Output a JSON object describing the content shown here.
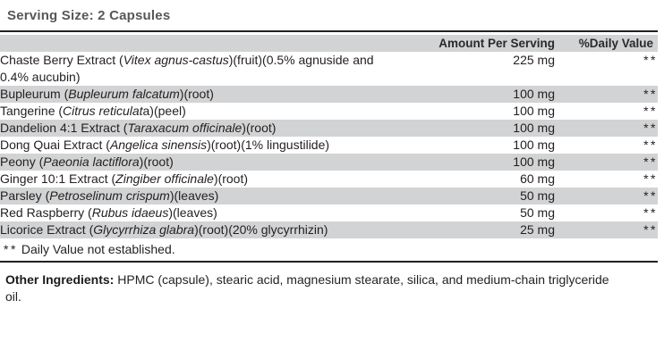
{
  "serving_size": "Serving Size: 2 Capsules",
  "table": {
    "columns": {
      "amount": "Amount Per Serving",
      "daily_value": "%Daily Value"
    },
    "rows": [
      {
        "segments": [
          {
            "t": "Chaste Berry Extract ("
          },
          {
            "t": "Vitex agnus-castus",
            "i": true
          },
          {
            "t": ")(fruit)(0.5% agnuside and"
          },
          {
            "br": true
          },
          {
            "t": "0.4% aucubin)"
          }
        ],
        "amount": "225 mg",
        "daily_value": "**"
      },
      {
        "segments": [
          {
            "t": "Bupleurum ("
          },
          {
            "t": "Bupleurum falcatum",
            "i": true
          },
          {
            "t": ")(root)"
          }
        ],
        "amount": "100 mg",
        "daily_value": "**"
      },
      {
        "segments": [
          {
            "t": "Tangerine ("
          },
          {
            "t": "Citrus reticulat",
            "i": true
          },
          {
            "t": "a)(peel)"
          }
        ],
        "amount": "100 mg",
        "daily_value": "**"
      },
      {
        "segments": [
          {
            "t": "Dandelion 4:1 Extract ("
          },
          {
            "t": "Taraxacum officinale",
            "i": true
          },
          {
            "t": ")(root)"
          }
        ],
        "amount": "100 mg",
        "daily_value": "**"
      },
      {
        "segments": [
          {
            "t": "Dong Quai Extract ("
          },
          {
            "t": "Angelica sinensis",
            "i": true
          },
          {
            "t": ")(root)(1% lingustilide)"
          }
        ],
        "amount": "100 mg",
        "daily_value": "**"
      },
      {
        "segments": [
          {
            "t": "Peony ("
          },
          {
            "t": "Paeonia lactiflora",
            "i": true
          },
          {
            "t": ")(root)"
          }
        ],
        "amount": "100 mg",
        "daily_value": "**"
      },
      {
        "segments": [
          {
            "t": "Ginger 10:1 Extract ("
          },
          {
            "t": "Zingiber officinale",
            "i": true
          },
          {
            "t": ")(root)"
          }
        ],
        "amount": "60 mg",
        "daily_value": "**"
      },
      {
        "segments": [
          {
            "t": "Parsley ("
          },
          {
            "t": "Petroselinum crispum",
            "i": true
          },
          {
            "t": ")(leaves)"
          }
        ],
        "amount": "50 mg",
        "daily_value": "**"
      },
      {
        "segments": [
          {
            "t": "Red Raspberry ("
          },
          {
            "t": "Rubus idaeus",
            "i": true
          },
          {
            "t": ")(leaves)"
          }
        ],
        "amount": "50 mg",
        "daily_value": "**"
      },
      {
        "segments": [
          {
            "t": "Licorice Extract ("
          },
          {
            "t": "Glycyrrhiza glabra",
            "i": true
          },
          {
            "t": ")(root)(20% glycyrrhizin)"
          }
        ],
        "amount": "25 mg",
        "daily_value": "**"
      }
    ],
    "footnote": {
      "marks": "**",
      "text": "Daily Value not established."
    }
  },
  "other_ingredients": {
    "label": "Other Ingredients:",
    "text": " HPMC (capsule), stearic acid, magnesium stearate, silica, and medium-chain triglyceride oil."
  },
  "colors": {
    "row_shade": "#d2d3d4",
    "text": "#231f20",
    "title": "#55575a",
    "rule": "#231f20"
  }
}
